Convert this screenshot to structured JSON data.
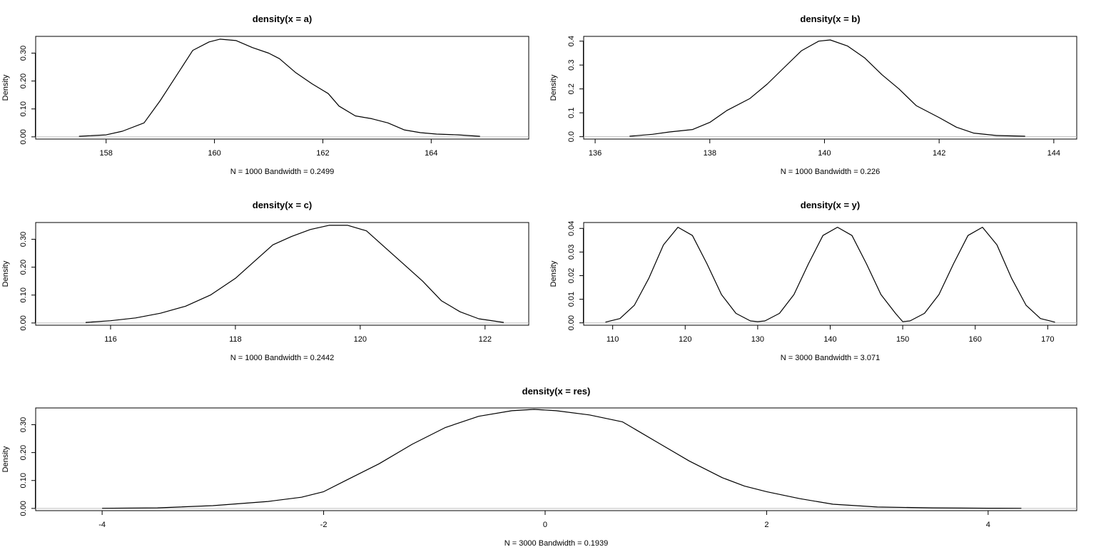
{
  "chart_data": [
    {
      "type": "line",
      "title": "density(x = a)",
      "ylabel": "Density",
      "xlabel": "N = 1000   Bandwidth = 0.2499",
      "xlim": [
        156.7,
        165.8
      ],
      "ylim": [
        -0.008,
        0.36
      ],
      "xticks": [
        158,
        160,
        162,
        164
      ],
      "yticks": [
        0.0,
        0.1,
        0.2,
        0.3
      ],
      "ytick_labels": [
        "0.00",
        "0.10",
        "0.20",
        "0.30"
      ],
      "baseline": 0,
      "series": [
        {
          "x": [
            157.5,
            158.0,
            158.3,
            158.7,
            159.0,
            159.3,
            159.6,
            159.9,
            160.1,
            160.4,
            160.7,
            161.0,
            161.2,
            161.5,
            161.8,
            162.1,
            162.3,
            162.6,
            162.9,
            163.2,
            163.5,
            163.8,
            164.1,
            164.5,
            164.9
          ],
          "y": [
            0.002,
            0.007,
            0.02,
            0.05,
            0.13,
            0.22,
            0.31,
            0.34,
            0.35,
            0.345,
            0.32,
            0.3,
            0.28,
            0.23,
            0.19,
            0.155,
            0.11,
            0.075,
            0.065,
            0.05,
            0.025,
            0.015,
            0.01,
            0.007,
            0.002
          ]
        }
      ]
    },
    {
      "type": "line",
      "title": "density(x = b)",
      "ylabel": "Density",
      "xlabel": "N = 1000   Bandwidth = 0.226",
      "xlim": [
        135.8,
        144.4
      ],
      "ylim": [
        -0.01,
        0.42
      ],
      "xticks": [
        136,
        138,
        140,
        142,
        144
      ],
      "yticks": [
        0.0,
        0.1,
        0.2,
        0.3,
        0.4
      ],
      "ytick_labels": [
        "0.0",
        "0.1",
        "0.2",
        "0.3",
        "0.4"
      ],
      "baseline": 0,
      "series": [
        {
          "x": [
            136.6,
            137.0,
            137.3,
            137.7,
            138.0,
            138.3,
            138.7,
            139.0,
            139.3,
            139.6,
            139.9,
            140.1,
            140.4,
            140.7,
            141.0,
            141.3,
            141.6,
            142.0,
            142.3,
            142.6,
            143.0,
            143.5
          ],
          "y": [
            0.002,
            0.01,
            0.02,
            0.03,
            0.06,
            0.11,
            0.16,
            0.22,
            0.29,
            0.36,
            0.4,
            0.405,
            0.38,
            0.33,
            0.26,
            0.2,
            0.13,
            0.08,
            0.04,
            0.015,
            0.005,
            0.002
          ]
        }
      ]
    },
    {
      "type": "line",
      "title": "density(x = c)",
      "ylabel": "Density",
      "xlabel": "N = 1000   Bandwidth = 0.2442",
      "xlim": [
        114.8,
        122.7
      ],
      "ylim": [
        -0.008,
        0.36
      ],
      "xticks": [
        116,
        118,
        120,
        122
      ],
      "yticks": [
        0.0,
        0.1,
        0.2,
        0.3
      ],
      "ytick_labels": [
        "0.00",
        "0.10",
        "0.20",
        "0.30"
      ],
      "baseline": 0,
      "series": [
        {
          "x": [
            115.6,
            116.0,
            116.4,
            116.8,
            117.2,
            117.6,
            118.0,
            118.3,
            118.6,
            118.9,
            119.2,
            119.5,
            119.8,
            120.1,
            120.4,
            120.7,
            121.0,
            121.3,
            121.6,
            121.9,
            122.3
          ],
          "y": [
            0.002,
            0.008,
            0.018,
            0.035,
            0.06,
            0.1,
            0.16,
            0.22,
            0.28,
            0.31,
            0.335,
            0.35,
            0.35,
            0.33,
            0.27,
            0.21,
            0.15,
            0.08,
            0.04,
            0.015,
            0.002
          ]
        }
      ]
    },
    {
      "type": "line",
      "title": "density(x = y)",
      "ylabel": "Density",
      "xlabel": "N = 3000   Bandwidth = 3.071",
      "xlim": [
        106.0,
        174.0
      ],
      "ylim": [
        -0.001,
        0.0425
      ],
      "xticks": [
        110,
        120,
        130,
        140,
        150,
        160,
        170
      ],
      "yticks": [
        0.0,
        0.01,
        0.02,
        0.03,
        0.04
      ],
      "ytick_labels": [
        "0.00",
        "0.01",
        "0.02",
        "0.03",
        "0.04"
      ],
      "baseline": 0,
      "series": [
        {
          "x": [
            109.0,
            111.0,
            113.0,
            115.0,
            117.0,
            119.0,
            121.0,
            123.0,
            125.0,
            127.0,
            129.0,
            130.0,
            131.0,
            133.0,
            135.0,
            137.0,
            139.0,
            141.0,
            143.0,
            145.0,
            147.0,
            149.0,
            150.0,
            151.0,
            153.0,
            155.0,
            157.0,
            159.0,
            161.0,
            163.0,
            165.0,
            167.0,
            169.0,
            171.0
          ],
          "y": [
            0.0003,
            0.0018,
            0.0075,
            0.019,
            0.033,
            0.0405,
            0.037,
            0.025,
            0.012,
            0.004,
            0.0008,
            0.0005,
            0.0008,
            0.004,
            0.012,
            0.025,
            0.037,
            0.0405,
            0.037,
            0.025,
            0.012,
            0.004,
            0.0005,
            0.0008,
            0.004,
            0.012,
            0.025,
            0.037,
            0.0405,
            0.033,
            0.019,
            0.0075,
            0.0018,
            0.0003
          ]
        }
      ]
    },
    {
      "type": "line",
      "title": "density(x = res)",
      "ylabel": "Density",
      "xlabel": "N = 3000   Bandwidth = 0.1939",
      "xlim": [
        -4.6,
        4.8
      ],
      "ylim": [
        -0.008,
        0.36
      ],
      "xticks": [
        -4,
        -2,
        0,
        2,
        4
      ],
      "yticks": [
        0.0,
        0.1,
        0.2,
        0.3
      ],
      "ytick_labels": [
        "0.00",
        "0.10",
        "0.20",
        "0.30"
      ],
      "baseline": 0,
      "series": [
        {
          "x": [
            -4.0,
            -3.5,
            -3.0,
            -2.5,
            -2.2,
            -2.0,
            -1.8,
            -1.5,
            -1.2,
            -0.9,
            -0.6,
            -0.3,
            -0.1,
            0.1,
            0.4,
            0.7,
            1.0,
            1.3,
            1.6,
            1.8,
            2.0,
            2.3,
            2.6,
            3.0,
            3.5,
            4.0,
            4.3
          ],
          "y": [
            0.0005,
            0.002,
            0.01,
            0.025,
            0.04,
            0.06,
            0.1,
            0.16,
            0.23,
            0.29,
            0.33,
            0.35,
            0.355,
            0.35,
            0.335,
            0.31,
            0.24,
            0.17,
            0.11,
            0.08,
            0.06,
            0.035,
            0.015,
            0.005,
            0.002,
            0.0008,
            0.0005
          ]
        }
      ]
    }
  ]
}
